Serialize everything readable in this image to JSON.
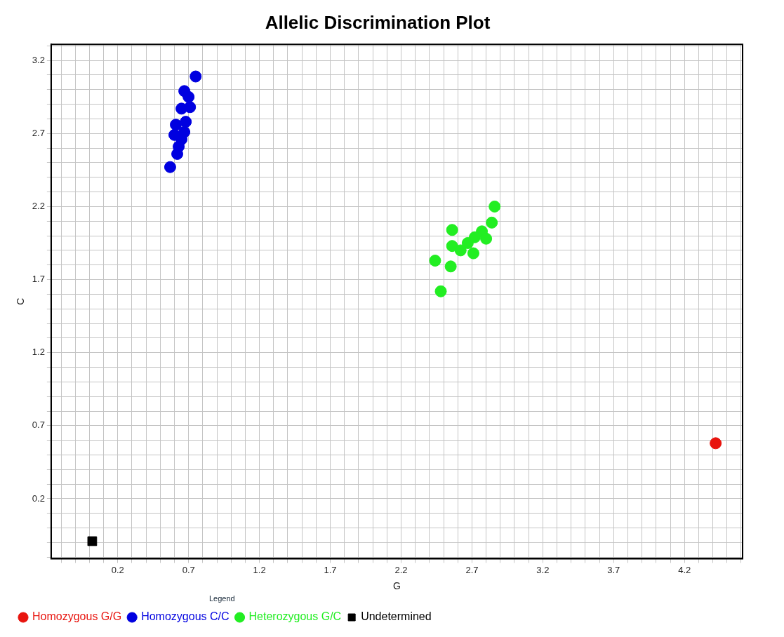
{
  "chart_data": {
    "type": "scatter",
    "title": "Allelic Discrimination Plot",
    "xlabel": "G",
    "ylabel": "C",
    "legend_title": "Legend",
    "legend": "bottom",
    "grid": true,
    "marker": "circle",
    "xlim": [
      -0.27,
      4.61
    ],
    "ylim": [
      -0.21,
      3.31
    ],
    "xticks": [
      {
        "value": -0.2,
        "label": null
      },
      {
        "value": -0.1,
        "label": null
      },
      {
        "value": 0,
        "label": null
      },
      {
        "value": 0.1,
        "label": null
      },
      0.2,
      {
        "value": 0.3,
        "label": null
      },
      {
        "value": 0.4,
        "label": null
      },
      {
        "value": 0.5,
        "label": null
      },
      {
        "value": 0.6,
        "label": null
      },
      0.7,
      {
        "value": 0.8,
        "label": null
      },
      {
        "value": 0.9,
        "label": null
      },
      {
        "value": 1.0,
        "label": null
      },
      {
        "value": 1.1,
        "label": null
      },
      1.2,
      {
        "value": 1.3,
        "label": null
      },
      {
        "value": 1.4,
        "label": null
      },
      {
        "value": 1.5,
        "label": null
      },
      {
        "value": 1.6,
        "label": null
      },
      1.7,
      {
        "value": 1.8,
        "label": null
      },
      {
        "value": 1.9,
        "label": null
      },
      {
        "value": 2.0,
        "label": null
      },
      {
        "value": 2.1,
        "label": null
      },
      2.2,
      {
        "value": 2.3,
        "label": null
      },
      {
        "value": 2.4,
        "label": null
      },
      {
        "value": 2.5,
        "label": null
      },
      {
        "value": 2.6,
        "label": null
      },
      2.7,
      {
        "value": 2.8,
        "label": null
      },
      {
        "value": 2.9,
        "label": null
      },
      {
        "value": 3.0,
        "label": null
      },
      {
        "value": 3.1,
        "label": null
      },
      3.2,
      {
        "value": 3.3,
        "label": null
      },
      {
        "value": 3.4,
        "label": null
      },
      {
        "value": 3.5,
        "label": null
      },
      {
        "value": 3.6,
        "label": null
      },
      3.7,
      {
        "value": 3.8,
        "label": null
      },
      {
        "value": 3.9,
        "label": null
      },
      {
        "value": 4.0,
        "label": null
      },
      {
        "value": 4.1,
        "label": null
      },
      4.2,
      {
        "value": 4.3,
        "label": null
      },
      {
        "value": 4.4,
        "label": null
      },
      {
        "value": 4.5,
        "label": null
      },
      {
        "value": 4.6,
        "label": null
      }
    ],
    "yticks": [
      {
        "value": -0.2,
        "label": null
      },
      {
        "value": -0.1,
        "label": null
      },
      {
        "value": 0,
        "label": null
      },
      {
        "value": 0.1,
        "label": null
      },
      0.2,
      {
        "value": 0.3,
        "label": null
      },
      {
        "value": 0.4,
        "label": null
      },
      {
        "value": 0.5,
        "label": null
      },
      {
        "value": 0.6,
        "label": null
      },
      0.7,
      {
        "value": 0.8,
        "label": null
      },
      {
        "value": 0.9,
        "label": null
      },
      {
        "value": 1.0,
        "label": null
      },
      {
        "value": 1.1,
        "label": null
      },
      1.2,
      {
        "value": 1.3,
        "label": null
      },
      {
        "value": 1.4,
        "label": null
      },
      {
        "value": 1.5,
        "label": null
      },
      {
        "value": 1.6,
        "label": null
      },
      1.7,
      {
        "value": 1.8,
        "label": null
      },
      {
        "value": 1.9,
        "label": null
      },
      {
        "value": 2.0,
        "label": null
      },
      {
        "value": 2.1,
        "label": null
      },
      2.2,
      {
        "value": 2.3,
        "label": null
      },
      {
        "value": 2.4,
        "label": null
      },
      {
        "value": 2.5,
        "label": null
      },
      {
        "value": 2.6,
        "label": null
      },
      2.7,
      {
        "value": 2.8,
        "label": null
      },
      {
        "value": 2.9,
        "label": null
      },
      {
        "value": 3.0,
        "label": null
      },
      {
        "value": 3.1,
        "label": null
      },
      3.2,
      {
        "value": 3.3,
        "label": null
      }
    ],
    "series": [
      {
        "name": "Homozygous G/G",
        "color": "#e8140e",
        "x": [
          4.42
        ],
        "values": [
          0.58
        ]
      },
      {
        "name": "Homozygous C/C",
        "color": "#0000e0",
        "x": [
          0.75,
          0.67,
          0.7,
          0.65,
          0.71,
          0.68,
          0.61,
          0.67,
          0.6,
          0.65,
          0.63,
          0.62,
          0.57
        ],
        "values": [
          3.09,
          2.99,
          2.95,
          2.87,
          2.88,
          2.78,
          2.76,
          2.71,
          2.69,
          2.66,
          2.61,
          2.56,
          2.47
        ]
      },
      {
        "name": "Heterozygous G/C",
        "color": "#22ee22",
        "x": [
          2.86,
          2.84,
          2.56,
          2.77,
          2.72,
          2.8,
          2.67,
          2.56,
          2.62,
          2.71,
          2.44,
          2.55,
          2.48
        ],
        "values": [
          2.2,
          2.09,
          2.04,
          2.03,
          1.99,
          1.98,
          1.95,
          1.93,
          1.9,
          1.88,
          1.83,
          1.79,
          1.62
        ]
      },
      {
        "name": "Undetermined",
        "color": "#000000",
        "marker": "square",
        "x": [
          0.02
        ],
        "values": [
          -0.09
        ]
      }
    ]
  }
}
